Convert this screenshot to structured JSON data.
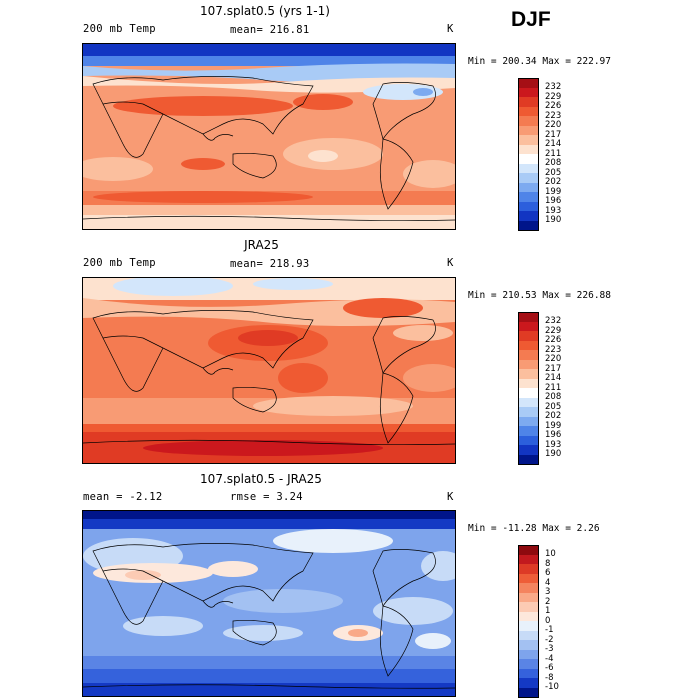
{
  "season": "DJF",
  "panels": [
    {
      "title": "107.splat0.5 (yrs 1-1)",
      "left_label": "200 mb Temp",
      "center_label": "mean= 216.81",
      "unit": "K",
      "minmax": "Min = 200.34 Max = 222.97",
      "colorbar_labels": [
        "232",
        "229",
        "226",
        "223",
        "220",
        "217",
        "214",
        "211",
        "208",
        "205",
        "202",
        "199",
        "196",
        "193",
        "190"
      ],
      "colorbar_colors": [
        "#a50f15",
        "#cb181d",
        "#e03b24",
        "#ef5a32",
        "#f47b51",
        "#f89b74",
        "#fbbf9e",
        "#fde2cf",
        "#ffffff",
        "#d3e6fb",
        "#a9cbf6",
        "#7daaf0",
        "#4f84e8",
        "#2c5fdc",
        "#1235c2",
        "#00158a"
      ]
    },
    {
      "title": "JRA25",
      "left_label": "200 mb Temp",
      "center_label": "mean= 218.93",
      "unit": "K",
      "minmax": "Min = 210.53 Max = 226.88",
      "colorbar_labels": [
        "232",
        "229",
        "226",
        "223",
        "220",
        "217",
        "214",
        "211",
        "208",
        "205",
        "202",
        "199",
        "196",
        "193",
        "190"
      ],
      "colorbar_colors": [
        "#a50f15",
        "#cb181d",
        "#e03b24",
        "#ef5a32",
        "#f47b51",
        "#f89b74",
        "#fbbf9e",
        "#fde2cf",
        "#ffffff",
        "#d3e6fb",
        "#a9cbf6",
        "#7daaf0",
        "#4f84e8",
        "#2c5fdc",
        "#1235c2",
        "#00158a"
      ]
    },
    {
      "title": "107.splat0.5 - JRA25",
      "left_label": "mean =   -2.12",
      "center_label": "rmse =    3.24",
      "unit": "K",
      "minmax": "Min = -11.28 Max =    2.26",
      "colorbar_labels": [
        "10",
        "8",
        "6",
        "4",
        "3",
        "2",
        "1",
        "0",
        "-1",
        "-2",
        "-3",
        "-4",
        "-6",
        "-8",
        "-10"
      ],
      "colorbar_colors": [
        "#8e0a0f",
        "#c2191e",
        "#dd3a26",
        "#ee5d38",
        "#f4845f",
        "#f9a988",
        "#fccbb4",
        "#fde8dc",
        "#e8f1fb",
        "#c7dbf7",
        "#a3c1f2",
        "#7ea4ec",
        "#5a84e5",
        "#3562dc",
        "#1439c4",
        "#00158a"
      ]
    }
  ]
}
